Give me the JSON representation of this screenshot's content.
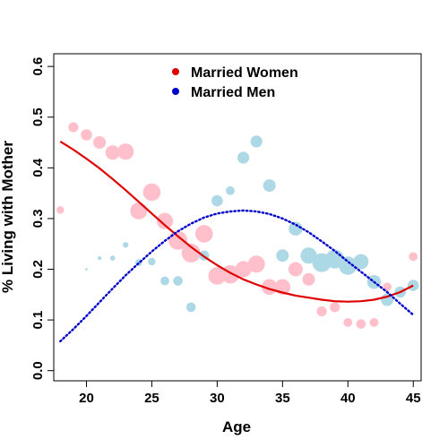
{
  "chart_data": {
    "type": "scatter",
    "title": "",
    "xlabel": "Age",
    "ylabel": "% Living with Mother",
    "xlim": [
      17.5,
      45.6
    ],
    "ylim": [
      -0.02,
      0.625
    ],
    "x_ticks": [
      20,
      25,
      30,
      35,
      40,
      45
    ],
    "y_ticks": [
      0.0,
      0.1,
      0.2,
      0.3,
      0.4,
      0.5,
      0.6
    ],
    "grid": false,
    "legend_position": "top-center",
    "bubble_size_encoding": "sample size",
    "series": [
      {
        "name": "Married Women",
        "marker_color": "#ffc0cb",
        "curve_color": "#e00000",
        "curve_style": "solid",
        "legend_color": "#e00000",
        "points": [
          {
            "x": 18,
            "y": 0.317,
            "size": 1.2
          },
          {
            "x": 19,
            "y": 0.48,
            "size": 1.6
          },
          {
            "x": 20,
            "y": 0.465,
            "size": 1.8
          },
          {
            "x": 21,
            "y": 0.45,
            "size": 2.0
          },
          {
            "x": 22,
            "y": 0.43,
            "size": 2.3
          },
          {
            "x": 23,
            "y": 0.432,
            "size": 2.6
          },
          {
            "x": 24,
            "y": 0.315,
            "size": 2.7
          },
          {
            "x": 25,
            "y": 0.352,
            "size": 2.8
          },
          {
            "x": 26,
            "y": 0.295,
            "size": 2.6
          },
          {
            "x": 27,
            "y": 0.257,
            "size": 3.0
          },
          {
            "x": 28,
            "y": 0.232,
            "size": 3.0
          },
          {
            "x": 29,
            "y": 0.27,
            "size": 2.8
          },
          {
            "x": 30,
            "y": 0.187,
            "size": 2.8
          },
          {
            "x": 31,
            "y": 0.19,
            "size": 2.9
          },
          {
            "x": 32,
            "y": 0.2,
            "size": 2.6
          },
          {
            "x": 33,
            "y": 0.21,
            "size": 2.7
          },
          {
            "x": 34,
            "y": 0.165,
            "size": 2.5
          },
          {
            "x": 35,
            "y": 0.165,
            "size": 2.5
          },
          {
            "x": 36,
            "y": 0.2,
            "size": 2.3
          },
          {
            "x": 37,
            "y": 0.18,
            "size": 2.0
          },
          {
            "x": 38,
            "y": 0.117,
            "size": 1.6
          },
          {
            "x": 39,
            "y": 0.125,
            "size": 1.6
          },
          {
            "x": 40,
            "y": 0.095,
            "size": 1.4
          },
          {
            "x": 41,
            "y": 0.092,
            "size": 1.5
          },
          {
            "x": 42,
            "y": 0.095,
            "size": 1.4
          },
          {
            "x": 43,
            "y": 0.165,
            "size": 1.4
          },
          {
            "x": 45,
            "y": 0.225,
            "size": 1.4
          }
        ],
        "curve": {
          "x": [
            18,
            19,
            20,
            21,
            22,
            23,
            24,
            25,
            26,
            27,
            28,
            29,
            30,
            31,
            32,
            33,
            34,
            35,
            36,
            37,
            38,
            39,
            40,
            41,
            42,
            43,
            44,
            45
          ],
          "y": [
            0.452,
            0.436,
            0.418,
            0.399,
            0.378,
            0.356,
            0.333,
            0.31,
            0.287,
            0.265,
            0.244,
            0.225,
            0.208,
            0.193,
            0.18,
            0.17,
            0.161,
            0.154,
            0.148,
            0.144,
            0.14,
            0.137,
            0.136,
            0.137,
            0.14,
            0.146,
            0.155,
            0.168
          ]
        }
      },
      {
        "name": "Married Men",
        "marker_color": "#add8e6",
        "curve_color": "#0000c8",
        "curve_style": "dotted",
        "legend_color": "#0000c8",
        "points": [
          {
            "x": 20,
            "y": 0.2,
            "size": 0.4
          },
          {
            "x": 21,
            "y": 0.222,
            "size": 0.6
          },
          {
            "x": 22,
            "y": 0.222,
            "size": 0.8
          },
          {
            "x": 23,
            "y": 0.248,
            "size": 0.9
          },
          {
            "x": 24,
            "y": 0.213,
            "size": 1.1
          },
          {
            "x": 25,
            "y": 0.215,
            "size": 1.2
          },
          {
            "x": 26,
            "y": 0.177,
            "size": 1.4
          },
          {
            "x": 27,
            "y": 0.177,
            "size": 1.5
          },
          {
            "x": 28,
            "y": 0.125,
            "size": 1.5
          },
          {
            "x": 29,
            "y": 0.227,
            "size": 1.6
          },
          {
            "x": 30,
            "y": 0.335,
            "size": 1.8
          },
          {
            "x": 31,
            "y": 0.355,
            "size": 1.4
          },
          {
            "x": 32,
            "y": 0.42,
            "size": 1.9
          },
          {
            "x": 33,
            "y": 0.452,
            "size": 1.9
          },
          {
            "x": 34,
            "y": 0.365,
            "size": 2.0
          },
          {
            "x": 35,
            "y": 0.227,
            "size": 2.0
          },
          {
            "x": 36,
            "y": 0.28,
            "size": 2.2
          },
          {
            "x": 37,
            "y": 0.227,
            "size": 2.6
          },
          {
            "x": 38,
            "y": 0.213,
            "size": 3.0
          },
          {
            "x": 39,
            "y": 0.22,
            "size": 3.0
          },
          {
            "x": 40,
            "y": 0.207,
            "size": 2.9
          },
          {
            "x": 41,
            "y": 0.215,
            "size": 2.4
          },
          {
            "x": 42,
            "y": 0.175,
            "size": 2.2
          },
          {
            "x": 43,
            "y": 0.14,
            "size": 2.0
          },
          {
            "x": 44,
            "y": 0.155,
            "size": 1.8
          },
          {
            "x": 45,
            "y": 0.168,
            "size": 1.8
          }
        ],
        "curve": {
          "x": [
            18,
            19,
            20,
            21,
            22,
            23,
            24,
            25,
            26,
            27,
            28,
            29,
            30,
            31,
            32,
            33,
            34,
            35,
            36,
            37,
            38,
            39,
            40,
            41,
            42,
            43,
            44,
            45
          ],
          "y": [
            0.058,
            0.082,
            0.108,
            0.135,
            0.162,
            0.188,
            0.212,
            0.235,
            0.256,
            0.275,
            0.29,
            0.302,
            0.31,
            0.314,
            0.316,
            0.314,
            0.309,
            0.3,
            0.288,
            0.273,
            0.255,
            0.236,
            0.215,
            0.195,
            0.175,
            0.155,
            0.132,
            0.11
          ]
        }
      }
    ]
  }
}
